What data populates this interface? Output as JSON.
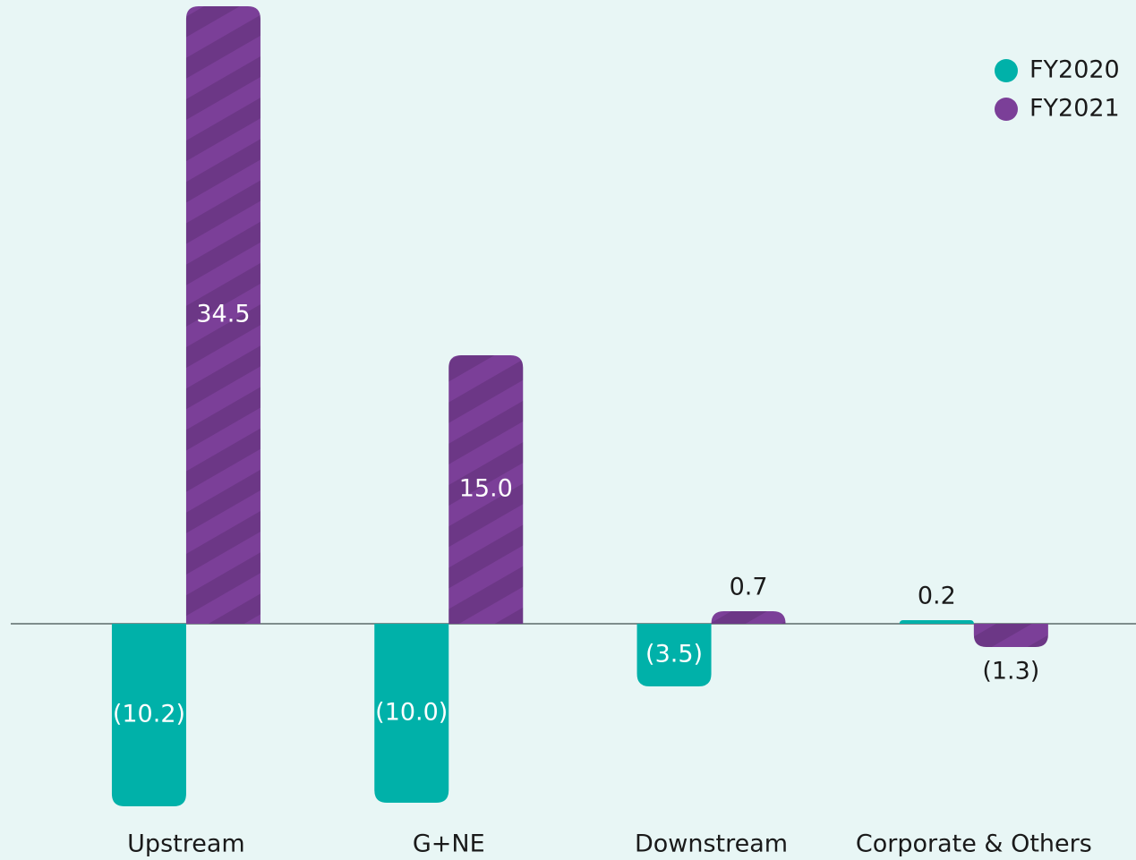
{
  "chart_data": {
    "type": "bar",
    "categories": [
      "Upstream",
      "G+NE",
      "Downstream",
      "Corporate & Others"
    ],
    "series": [
      {
        "name": "FY2020",
        "color": "#00b1a9",
        "values": [
          -10.2,
          -10.0,
          -3.5,
          0.2
        ],
        "value_labels": [
          "(10.2)",
          "(10.0)",
          "(3.5)",
          "0.2"
        ]
      },
      {
        "name": "FY2021",
        "color": "#7b3f98",
        "values": [
          34.5,
          15.0,
          0.7,
          -1.3
        ],
        "value_labels": [
          "34.5",
          "15.0",
          "0.7",
          "(1.3)"
        ]
      }
    ],
    "ylim": [
      -13.2,
      34.85
    ],
    "legend": "top-right"
  }
}
